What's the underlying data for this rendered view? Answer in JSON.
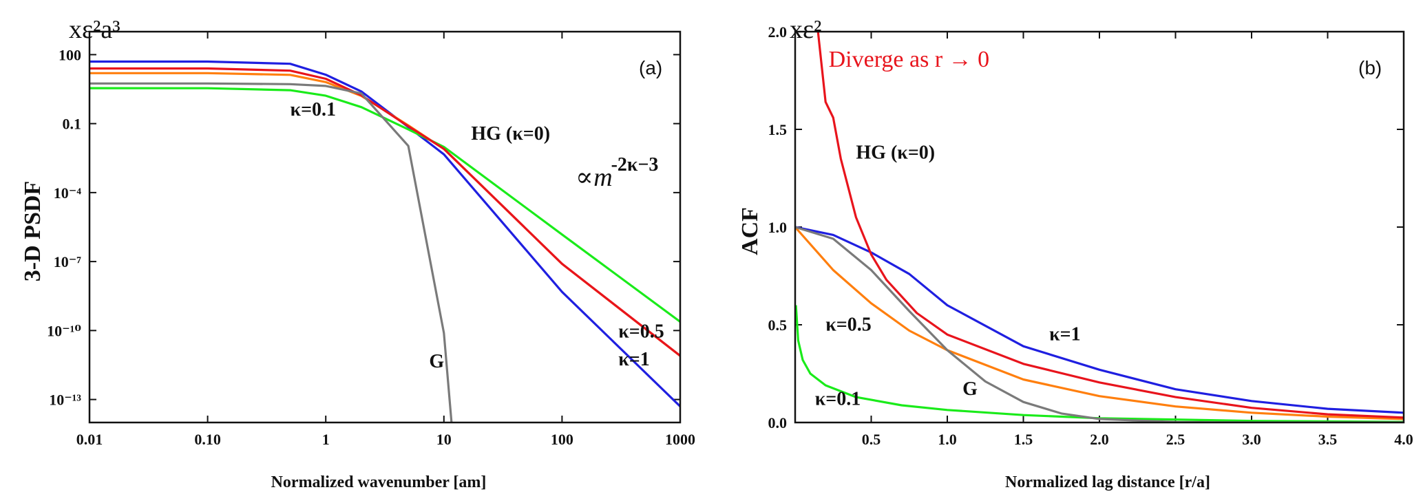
{
  "chart_data": [
    {
      "type": "line",
      "panel_label": "(a)",
      "scale_note": "xε²a³",
      "ylabel": "3-D PSDF",
      "xlabel": "Normalized wavenumber  [am]",
      "x_scale": "log",
      "y_scale": "log",
      "xlim": [
        0.01,
        1000
      ],
      "ylim": [
        1e-14,
        1000
      ],
      "x_ticks": [
        {
          "v": 0.01,
          "label": "0.01"
        },
        {
          "v": 0.1,
          "label": "0.10"
        },
        {
          "v": 1,
          "label": "1"
        },
        {
          "v": 10,
          "label": "10"
        },
        {
          "v": 100,
          "label": "100"
        },
        {
          "v": 1000,
          "label": "1000"
        }
      ],
      "y_ticks": [
        {
          "v": 100,
          "label": "100"
        },
        {
          "v": 0.1,
          "label": "0.1"
        },
        {
          "v": 0.0001,
          "label": "10⁻⁴"
        },
        {
          "v": 1e-07,
          "label": "10⁻⁷"
        },
        {
          "v": 1e-10,
          "label": "10⁻¹⁰"
        },
        {
          "v": 1e-13,
          "label": "10⁻¹³"
        }
      ],
      "series": [
        {
          "name": "κ=1",
          "color": "#1f1fe0",
          "kappa": 1,
          "x": [
            0.01,
            0.1,
            0.5,
            1,
            2,
            5,
            10,
            100,
            1000
          ],
          "y": [
            50,
            50,
            40,
            13.4,
            2.5,
            0.071,
            0.0046,
            4.8e-09,
            5e-14
          ]
        },
        {
          "name": "κ=0.5",
          "color": "#ff7f0e",
          "kappa": 0.5,
          "x": [
            0.01,
            0.1,
            0.5,
            1,
            2,
            5,
            10,
            100,
            1000
          ],
          "y": [
            15.7,
            15.7,
            13.2,
            6.4,
            1.6,
            0.084,
            0.0079,
            7.9e-08,
            7.9e-12
          ]
        },
        {
          "name": "κ=0.1",
          "color": "#1aeb1a",
          "kappa": 0.1,
          "x": [
            0.01,
            0.1,
            0.5,
            1,
            2,
            5,
            10,
            100,
            1000
          ],
          "y": [
            3.48,
            3.47,
            2.84,
            1.63,
            0.52,
            0.056,
            0.0097,
            1.5e-06,
            2.4e-10
          ]
        },
        {
          "name": "HG (κ=0)",
          "color": "#e8141c",
          "kappa": 0,
          "x": [
            0.01,
            0.1,
            0.5,
            1,
            2,
            5,
            10,
            100,
            1000
          ],
          "y": [
            25.1,
            25.1,
            20.1,
            8.9,
            1.72,
            0.077,
            0.008,
            8e-08,
            8e-12
          ]
        },
        {
          "name": "G",
          "color": "#7a7a7a",
          "kappa": null,
          "x": [
            0.01,
            0.1,
            0.5,
            1,
            2,
            5,
            10,
            12
          ],
          "y": [
            5.57,
            5.56,
            5.22,
            4.34,
            2.05,
            0.0107,
            7.8e-11,
            1.3e-15
          ]
        }
      ],
      "annotations": [
        {
          "text": "HG (κ=0)",
          "x": 17,
          "y": 0.02
        },
        {
          "text": "κ=0.1",
          "x": 0.5,
          "y": 0.22
        },
        {
          "text": "G",
          "x": 7.5,
          "y": 2.5e-12
        },
        {
          "text": "κ=0.5",
          "x": 300,
          "y": 5e-11
        },
        {
          "text": "κ=1",
          "x": 300,
          "y": 3e-12
        },
        {
          "text": "∝",
          "x": 130,
          "y": 0.0002
        },
        {
          "text": "m",
          "x": 185,
          "y": 0.0002
        },
        {
          "text": "-2κ−3",
          "x": 260,
          "y": 0.0009
        }
      ]
    },
    {
      "type": "line",
      "panel_label": "(b)",
      "scale_note": "xε²",
      "ylabel": "ACF",
      "xlabel": "Normalized lag distance [r/a]",
      "x_scale": "linear",
      "y_scale": "linear",
      "xlim": [
        0,
        4
      ],
      "ylim": [
        0,
        2
      ],
      "x_ticks": [
        {
          "v": 0.5,
          "label": "0.5"
        },
        {
          "v": 1,
          "label": "1.0"
        },
        {
          "v": 1.5,
          "label": "1.5"
        },
        {
          "v": 2,
          "label": "2.0"
        },
        {
          "v": 2.5,
          "label": "2.5"
        },
        {
          "v": 3,
          "label": "3.0"
        },
        {
          "v": 3.5,
          "label": "3.5"
        },
        {
          "v": 4,
          "label": "4.0"
        }
      ],
      "y_ticks": [
        {
          "v": 0,
          "label": "0.0"
        },
        {
          "v": 0.5,
          "label": "0.5"
        },
        {
          "v": 1,
          "label": "1.0"
        },
        {
          "v": 1.5,
          "label": "1.5"
        },
        {
          "v": 2,
          "label": "2.0"
        }
      ],
      "series": [
        {
          "name": "κ=1",
          "color": "#1f1fe0",
          "x": [
            0,
            0.25,
            0.5,
            0.75,
            1,
            1.5,
            2,
            2.5,
            3,
            3.5,
            4
          ],
          "y": [
            1,
            0.96,
            0.87,
            0.76,
            0.6,
            0.39,
            0.27,
            0.17,
            0.11,
            0.07,
            0.05
          ]
        },
        {
          "name": "κ=0.5",
          "color": "#ff7f0e",
          "x": [
            0,
            0.25,
            0.5,
            0.75,
            1,
            1.5,
            2,
            2.5,
            3,
            3.5,
            4
          ],
          "y": [
            1,
            0.78,
            0.61,
            0.47,
            0.37,
            0.22,
            0.135,
            0.082,
            0.05,
            0.03,
            0.018
          ]
        },
        {
          "name": "κ=0.1",
          "color": "#1aeb1a",
          "x": [
            0.005,
            0.02,
            0.05,
            0.1,
            0.2,
            0.4,
            0.7,
            1,
            1.5,
            2,
            3,
            4
          ],
          "y": [
            0.6,
            0.42,
            0.32,
            0.25,
            0.19,
            0.13,
            0.088,
            0.064,
            0.038,
            0.022,
            0.008,
            0.003
          ]
        },
        {
          "name": "HG (κ=0)",
          "color": "#e8141c",
          "x": [
            0.15,
            0.2,
            0.25,
            0.3,
            0.4,
            0.5,
            0.6,
            0.8,
            1,
            1.5,
            2,
            2.5,
            3,
            3.5,
            4
          ],
          "y": [
            2,
            1.64,
            1.56,
            1.35,
            1.05,
            0.86,
            0.73,
            0.56,
            0.45,
            0.3,
            0.205,
            0.13,
            0.075,
            0.042,
            0.025
          ]
        },
        {
          "name": "G",
          "color": "#7a7a7a",
          "x": [
            0,
            0.25,
            0.5,
            0.75,
            1,
            1.25,
            1.5,
            1.75,
            2,
            2.5,
            3,
            4
          ],
          "y": [
            1,
            0.94,
            0.78,
            0.57,
            0.37,
            0.21,
            0.105,
            0.046,
            0.018,
            0.002,
            0,
            0
          ]
        }
      ],
      "annotations": [
        {
          "text": "Diverge as r → 0",
          "x": 0.22,
          "y": 1.82,
          "color": "#e8141c"
        },
        {
          "text": "HG (κ=0)",
          "x": 0.4,
          "y": 1.35
        },
        {
          "text": "κ=0.5",
          "x": 0.2,
          "y": 0.47
        },
        {
          "text": "κ=1",
          "x": 1.67,
          "y": 0.42
        },
        {
          "text": "G",
          "x": 1.1,
          "y": 0.14
        },
        {
          "text": "κ=0.1",
          "x": 0.13,
          "y": 0.09
        }
      ]
    }
  ]
}
